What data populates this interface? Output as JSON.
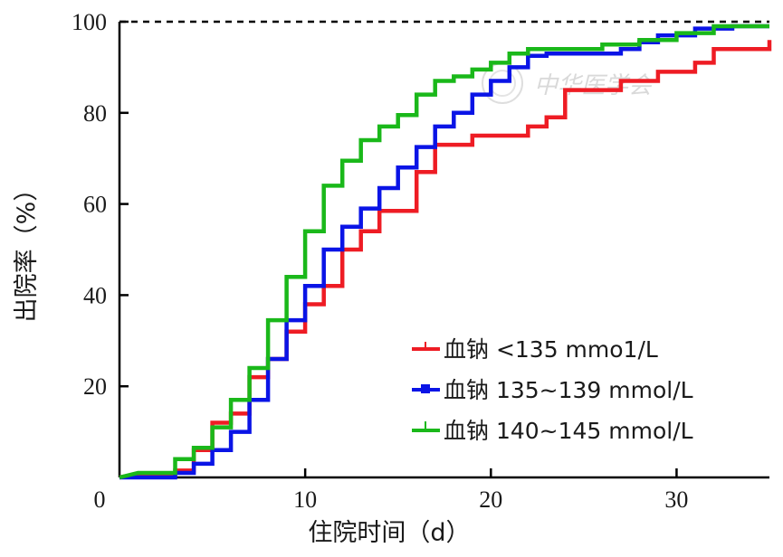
{
  "chart_data": {
    "type": "line",
    "step": true,
    "xlabel": "住院时间（d）",
    "ylabel": "出院率（%）",
    "xlim": [
      0,
      35
    ],
    "ylim": [
      0,
      100
    ],
    "xticks": [
      0,
      10,
      20,
      30
    ],
    "yticks": [
      20,
      40,
      60,
      80,
      100
    ],
    "x_tick_labels": [
      "0",
      "10",
      "20",
      "30"
    ],
    "y_tick_labels": [
      "20",
      "40",
      "60",
      "80",
      "100"
    ],
    "reference_line": {
      "y": 100,
      "style": "dashed"
    },
    "legend_position": "lower-right",
    "watermark": "中华医学会",
    "series": [
      {
        "name": "血钠 <135 mmo1/L",
        "color": "#ee1c24",
        "marker": "tick",
        "points": [
          [
            0,
            0
          ],
          [
            1,
            0.8
          ],
          [
            3,
            0.8
          ],
          [
            3,
            1.5
          ],
          [
            4,
            1.5
          ],
          [
            4,
            6
          ],
          [
            5,
            6
          ],
          [
            5,
            12
          ],
          [
            6,
            12
          ],
          [
            6,
            14
          ],
          [
            7,
            14
          ],
          [
            7,
            22
          ],
          [
            8,
            22
          ],
          [
            8,
            26
          ],
          [
            9,
            26
          ],
          [
            9,
            32
          ],
          [
            10,
            32
          ],
          [
            10,
            38
          ],
          [
            11,
            38
          ],
          [
            11,
            42
          ],
          [
            12,
            42
          ],
          [
            12,
            50
          ],
          [
            13,
            50
          ],
          [
            13,
            54
          ],
          [
            14,
            54
          ],
          [
            14,
            58.5
          ],
          [
            16,
            58.5
          ],
          [
            16,
            67
          ],
          [
            17,
            67
          ],
          [
            17,
            73
          ],
          [
            19,
            73
          ],
          [
            19,
            75
          ],
          [
            22,
            75
          ],
          [
            22,
            77
          ],
          [
            23,
            77
          ],
          [
            23,
            79
          ],
          [
            24,
            79
          ],
          [
            24,
            85
          ],
          [
            27,
            85
          ],
          [
            27,
            87
          ],
          [
            29,
            87
          ],
          [
            29,
            89
          ],
          [
            31,
            89
          ],
          [
            31,
            91
          ],
          [
            32,
            91
          ],
          [
            32,
            94
          ],
          [
            35,
            94
          ],
          [
            35,
            96
          ]
        ]
      },
      {
        "name": "血钠 135~139 mmol/L",
        "color": "#0a14e6",
        "marker": "square",
        "points": [
          [
            0,
            0
          ],
          [
            3,
            0
          ],
          [
            3,
            1
          ],
          [
            4,
            1
          ],
          [
            4,
            3
          ],
          [
            5,
            3
          ],
          [
            5,
            6
          ],
          [
            6,
            6
          ],
          [
            6,
            10
          ],
          [
            7,
            10
          ],
          [
            7,
            17
          ],
          [
            8,
            17
          ],
          [
            8,
            26
          ],
          [
            9,
            26
          ],
          [
            9,
            34.5
          ],
          [
            10,
            34.5
          ],
          [
            10,
            42
          ],
          [
            11,
            42
          ],
          [
            11,
            50
          ],
          [
            12,
            50
          ],
          [
            12,
            55
          ],
          [
            13,
            55
          ],
          [
            13,
            59
          ],
          [
            14,
            59
          ],
          [
            14,
            63.5
          ],
          [
            15,
            63.5
          ],
          [
            15,
            68
          ],
          [
            16,
            68
          ],
          [
            16,
            72.5
          ],
          [
            17,
            72.5
          ],
          [
            17,
            77
          ],
          [
            18,
            77
          ],
          [
            18,
            80
          ],
          [
            19,
            80
          ],
          [
            19,
            84
          ],
          [
            20,
            84
          ],
          [
            20,
            87
          ],
          [
            21,
            87
          ],
          [
            21,
            90
          ],
          [
            22,
            90
          ],
          [
            22,
            92.5
          ],
          [
            23,
            92.5
          ],
          [
            23,
            93
          ],
          [
            27,
            93
          ],
          [
            27,
            94
          ],
          [
            28,
            94
          ],
          [
            28,
            95.5
          ],
          [
            29,
            95.5
          ],
          [
            29,
            97
          ],
          [
            31,
            97
          ],
          [
            31,
            98.5
          ],
          [
            33,
            98.5
          ],
          [
            33,
            99
          ],
          [
            35,
            99
          ]
        ]
      },
      {
        "name": "血钠 140~145 mmol/L",
        "color": "#1ab81a",
        "marker": "tick",
        "points": [
          [
            0,
            0
          ],
          [
            1,
            1
          ],
          [
            3,
            1
          ],
          [
            3,
            4
          ],
          [
            4,
            4
          ],
          [
            4,
            6.5
          ],
          [
            5,
            6.5
          ],
          [
            5,
            11
          ],
          [
            6,
            11
          ],
          [
            6,
            17
          ],
          [
            7,
            17
          ],
          [
            7,
            24
          ],
          [
            8,
            24
          ],
          [
            8,
            34.5
          ],
          [
            9,
            34.5
          ],
          [
            9,
            44
          ],
          [
            10,
            44
          ],
          [
            10,
            54
          ],
          [
            11,
            54
          ],
          [
            11,
            64
          ],
          [
            12,
            64
          ],
          [
            12,
            69.5
          ],
          [
            13,
            69.5
          ],
          [
            13,
            74
          ],
          [
            14,
            74
          ],
          [
            14,
            77
          ],
          [
            15,
            77
          ],
          [
            15,
            79.5
          ],
          [
            16,
            79.5
          ],
          [
            16,
            84
          ],
          [
            17,
            84
          ],
          [
            17,
            87
          ],
          [
            18,
            87
          ],
          [
            18,
            88
          ],
          [
            19,
            88
          ],
          [
            19,
            89.5
          ],
          [
            20,
            89.5
          ],
          [
            20,
            91
          ],
          [
            21,
            91
          ],
          [
            21,
            93
          ],
          [
            22,
            93
          ],
          [
            22,
            94
          ],
          [
            26,
            94
          ],
          [
            26,
            95
          ],
          [
            28,
            95
          ],
          [
            28,
            96
          ],
          [
            30,
            96
          ],
          [
            30,
            97.5
          ],
          [
            32,
            97.5
          ],
          [
            32,
            99
          ],
          [
            35,
            99
          ]
        ]
      }
    ]
  }
}
